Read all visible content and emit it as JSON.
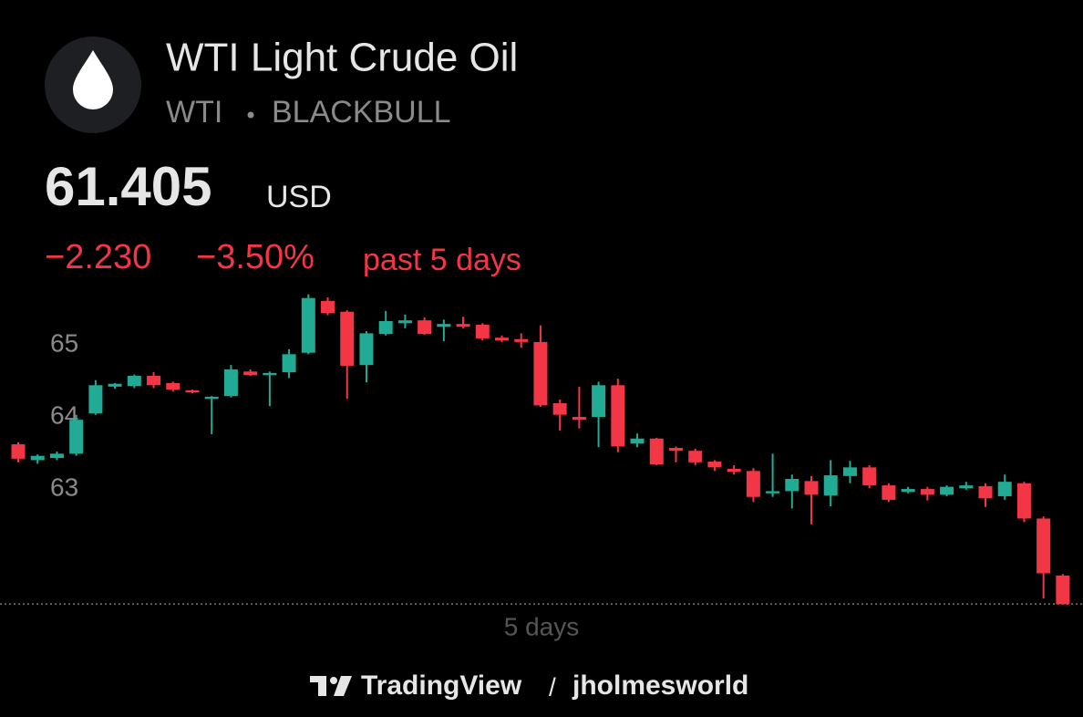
{
  "chart_data": {
    "type": "candlestick",
    "title": "WTI Light Crude Oil",
    "symbol": "WTI",
    "exchange": "BLACKBULL",
    "price": "61.405",
    "currency": "USD",
    "change": "−2.230",
    "change_percent": "−3.50%",
    "period_text": "past 5 days",
    "x_label": "5 days",
    "brand": "TradingView",
    "separator": "/",
    "author": "jholmesworld",
    "up_color": "#22ab94",
    "down_color": "#f23645",
    "last": 61.405,
    "ylim": [
      61.33,
      65.76
    ],
    "yticks": [
      63,
      64,
      65
    ],
    "open": [
      63.62,
      63.4,
      63.43,
      63.49,
      64.05,
      64.42,
      64.43,
      64.57,
      64.47,
      64.37,
      64.25,
      64.29,
      64.63,
      64.58,
      64.62,
      64.89,
      65.61,
      65.46,
      64.72,
      65.15,
      65.3,
      65.34,
      65.25,
      65.29,
      65.28,
      65.1,
      65.08,
      65.04,
      64.19,
      64.0,
      64.0,
      64.44,
      63.63,
      63.7,
      63.57,
      63.53,
      63.38,
      63.28,
      63.25,
      62.94,
      62.97,
      63.11,
      62.91,
      63.18,
      63.3,
      63.05,
      62.96,
      63.0,
      62.92,
      63.01,
      63.04,
      62.9,
      63.08,
      62.59,
      61.8
    ],
    "high": [
      63.65,
      63.48,
      63.52,
      64.03,
      64.51,
      64.47,
      64.59,
      64.62,
      64.49,
      64.38,
      64.29,
      64.72,
      64.66,
      64.63,
      64.94,
      65.7,
      65.66,
      65.48,
      65.19,
      65.47,
      65.42,
      65.38,
      65.35,
      65.39,
      65.3,
      65.13,
      65.16,
      65.27,
      64.24,
      64.42,
      64.49,
      64.53,
      63.77,
      63.71,
      63.59,
      63.56,
      63.4,
      63.33,
      63.29,
      63.49,
      63.2,
      63.18,
      63.4,
      63.39,
      63.33,
      63.08,
      63.03,
      63.03,
      63.05,
      63.1,
      63.08,
      63.2,
      63.1,
      62.62,
      61.82
    ],
    "low": [
      63.37,
      63.35,
      63.4,
      63.46,
      64.03,
      64.39,
      64.4,
      64.4,
      64.35,
      64.33,
      63.76,
      64.27,
      64.57,
      64.15,
      64.54,
      64.87,
      65.41,
      64.25,
      64.48,
      65.13,
      65.23,
      65.14,
      65.05,
      65.23,
      65.06,
      65.04,
      64.96,
      64.14,
      63.81,
      63.84,
      63.58,
      63.51,
      63.58,
      63.33,
      63.37,
      63.33,
      63.25,
      63.2,
      62.82,
      62.89,
      62.73,
      62.51,
      62.76,
      63.08,
      63.01,
      62.82,
      62.94,
      62.84,
      62.9,
      62.99,
      62.75,
      62.85,
      62.54,
      61.48,
      61.4
    ],
    "close": [
      63.42,
      63.46,
      63.49,
      63.96,
      64.44,
      64.46,
      64.57,
      64.44,
      64.38,
      64.34,
      64.28,
      64.66,
      64.58,
      64.61,
      64.87,
      65.65,
      65.44,
      64.71,
      65.16,
      65.33,
      65.34,
      65.15,
      65.29,
      65.25,
      65.09,
      65.06,
      65.04,
      64.16,
      64.03,
      63.96,
      64.44,
      63.59,
      63.7,
      63.34,
      63.53,
      63.37,
      63.3,
      63.24,
      62.89,
      62.97,
      63.14,
      62.92,
      63.19,
      63.3,
      63.05,
      62.85,
      63.0,
      62.92,
      63.03,
      63.05,
      62.87,
      63.1,
      62.59,
      61.83,
      61.4
    ]
  }
}
